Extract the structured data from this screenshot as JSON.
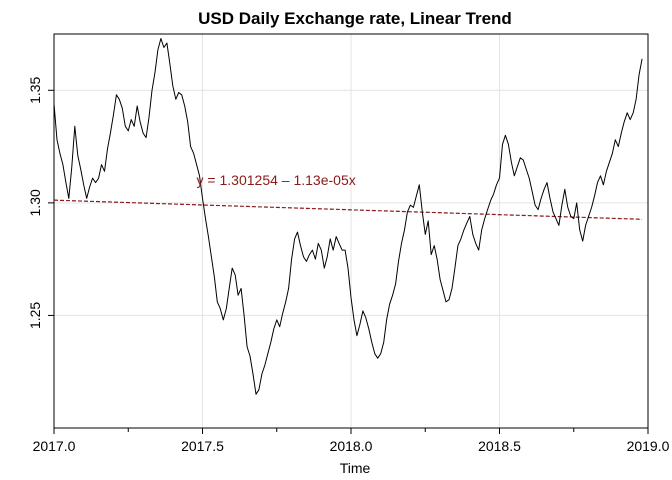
{
  "chart_data": {
    "type": "line",
    "title": "USD Daily Exchange rate, Linear Trend",
    "xlabel": "Time",
    "ylabel": "",
    "xlim": [
      2017.0,
      2019.0
    ],
    "ylim": [
      1.2,
      1.375
    ],
    "xticks": [
      {
        "value": 2017.0,
        "label": "2017.0"
      },
      {
        "value": 2017.5,
        "label": "2017.5"
      },
      {
        "value": 2018.0,
        "label": "2018.0"
      },
      {
        "value": 2018.5,
        "label": "2018.5"
      },
      {
        "value": 2019.0,
        "label": "2019.0"
      }
    ],
    "yticks": [
      {
        "value": 1.25,
        "label": "1.25"
      },
      {
        "value": 1.3,
        "label": "1.30"
      },
      {
        "value": 1.35,
        "label": "1.35"
      }
    ],
    "minor_xticks": [
      2017.25,
      2017.75,
      2018.25,
      2018.75
    ],
    "grid": true,
    "annotation": {
      "text": "y = 1.301254 – 1.13e-05x",
      "x": 2017.48,
      "y": 1.308,
      "color": "#8B1A1A"
    },
    "series": [
      {
        "color": "#000000",
        "x": [
          2017.0,
          2017.01,
          2017.02,
          2017.03,
          2017.04,
          2017.05,
          2017.06,
          2017.07,
          2017.08,
          2017.09,
          2017.1,
          2017.11,
          2017.12,
          2017.13,
          2017.14,
          2017.15,
          2017.16,
          2017.17,
          2017.18,
          2017.19,
          2017.2,
          2017.21,
          2017.22,
          2017.23,
          2017.24,
          2017.25,
          2017.26,
          2017.27,
          2017.28,
          2017.29,
          2017.3,
          2017.31,
          2017.32,
          2017.33,
          2017.34,
          2017.35,
          2017.36,
          2017.37,
          2017.38,
          2017.39,
          2017.4,
          2017.41,
          2017.42,
          2017.43,
          2017.44,
          2017.45,
          2017.46,
          2017.47,
          2017.48,
          2017.49,
          2017.5,
          2017.51,
          2017.52,
          2017.53,
          2017.54,
          2017.55,
          2017.56,
          2017.57,
          2017.58,
          2017.59,
          2017.6,
          2017.61,
          2017.62,
          2017.63,
          2017.64,
          2017.65,
          2017.66,
          2017.67,
          2017.68,
          2017.69,
          2017.7,
          2017.71,
          2017.72,
          2017.73,
          2017.74,
          2017.75,
          2017.76,
          2017.77,
          2017.78,
          2017.79,
          2017.8,
          2017.81,
          2017.82,
          2017.83,
          2017.84,
          2017.85,
          2017.86,
          2017.87,
          2017.88,
          2017.89,
          2017.9,
          2017.91,
          2017.92,
          2017.93,
          2017.94,
          2017.95,
          2017.96,
          2017.97,
          2017.98,
          2017.99,
          2018.0,
          2018.01,
          2018.02,
          2018.03,
          2018.04,
          2018.05,
          2018.06,
          2018.07,
          2018.08,
          2018.09,
          2018.1,
          2018.11,
          2018.12,
          2018.13,
          2018.14,
          2018.15,
          2018.16,
          2018.17,
          2018.18,
          2018.19,
          2018.2,
          2018.21,
          2018.22,
          2018.23,
          2018.24,
          2018.25,
          2018.26,
          2018.27,
          2018.28,
          2018.29,
          2018.3,
          2018.31,
          2018.32,
          2018.33,
          2018.34,
          2018.35,
          2018.36,
          2018.37,
          2018.38,
          2018.39,
          2018.4,
          2018.41,
          2018.42,
          2018.43,
          2018.44,
          2018.45,
          2018.46,
          2018.47,
          2018.48,
          2018.49,
          2018.5,
          2018.51,
          2018.52,
          2018.53,
          2018.54,
          2018.55,
          2018.56,
          2018.57,
          2018.58,
          2018.59,
          2018.6,
          2018.61,
          2018.62,
          2018.63,
          2018.64,
          2018.65,
          2018.66,
          2018.67,
          2018.68,
          2018.69,
          2018.7,
          2018.71,
          2018.72,
          2018.73,
          2018.74,
          2018.75,
          2018.76,
          2018.77,
          2018.78,
          2018.79,
          2018.8,
          2018.81,
          2018.82,
          2018.83,
          2018.84,
          2018.85,
          2018.86,
          2018.87,
          2018.88,
          2018.89,
          2018.9,
          2018.91,
          2018.92,
          2018.93,
          2018.94,
          2018.95,
          2018.96,
          2018.97,
          2018.98
        ],
        "y": [
          1.344,
          1.328,
          1.322,
          1.317,
          1.309,
          1.302,
          1.316,
          1.334,
          1.321,
          1.315,
          1.308,
          1.302,
          1.307,
          1.311,
          1.309,
          1.311,
          1.317,
          1.314,
          1.324,
          1.331,
          1.339,
          1.348,
          1.346,
          1.342,
          1.334,
          1.332,
          1.337,
          1.334,
          1.343,
          1.336,
          1.331,
          1.329,
          1.338,
          1.35,
          1.358,
          1.368,
          1.373,
          1.369,
          1.371,
          1.362,
          1.352,
          1.346,
          1.349,
          1.348,
          1.343,
          1.336,
          1.325,
          1.322,
          1.317,
          1.312,
          1.302,
          1.293,
          1.285,
          1.276,
          1.267,
          1.256,
          1.253,
          1.248,
          1.253,
          1.262,
          1.271,
          1.268,
          1.259,
          1.262,
          1.25,
          1.236,
          1.232,
          1.224,
          1.215,
          1.217,
          1.224,
          1.228,
          1.233,
          1.238,
          1.244,
          1.248,
          1.245,
          1.251,
          1.256,
          1.262,
          1.275,
          1.284,
          1.287,
          1.281,
          1.276,
          1.274,
          1.277,
          1.279,
          1.275,
          1.282,
          1.279,
          1.271,
          1.276,
          1.284,
          1.279,
          1.285,
          1.282,
          1.279,
          1.279,
          1.271,
          1.258,
          1.248,
          1.241,
          1.246,
          1.252,
          1.249,
          1.244,
          1.238,
          1.233,
          1.231,
          1.233,
          1.238,
          1.248,
          1.255,
          1.259,
          1.264,
          1.274,
          1.282,
          1.288,
          1.296,
          1.299,
          1.298,
          1.303,
          1.308,
          1.296,
          1.286,
          1.292,
          1.277,
          1.281,
          1.275,
          1.266,
          1.261,
          1.256,
          1.257,
          1.262,
          1.271,
          1.281,
          1.284,
          1.288,
          1.291,
          1.294,
          1.286,
          1.282,
          1.279,
          1.288,
          1.293,
          1.297,
          1.301,
          1.304,
          1.308,
          1.311,
          1.326,
          1.33,
          1.326,
          1.318,
          1.312,
          1.316,
          1.32,
          1.319,
          1.315,
          1.311,
          1.305,
          1.299,
          1.297,
          1.302,
          1.306,
          1.309,
          1.302,
          1.296,
          1.293,
          1.29,
          1.299,
          1.306,
          1.298,
          1.294,
          1.293,
          1.3,
          1.288,
          1.283,
          1.29,
          1.294,
          1.298,
          1.303,
          1.309,
          1.312,
          1.308,
          1.314,
          1.318,
          1.322,
          1.328,
          1.325,
          1.331,
          1.336,
          1.34,
          1.337,
          1.34,
          1.346,
          1.357,
          1.364
        ]
      },
      {
        "color": "#8B1A1A",
        "dashed": true,
        "x": [
          2017.0,
          2018.98
        ],
        "y": [
          1.3012,
          1.2927
        ]
      }
    ]
  }
}
